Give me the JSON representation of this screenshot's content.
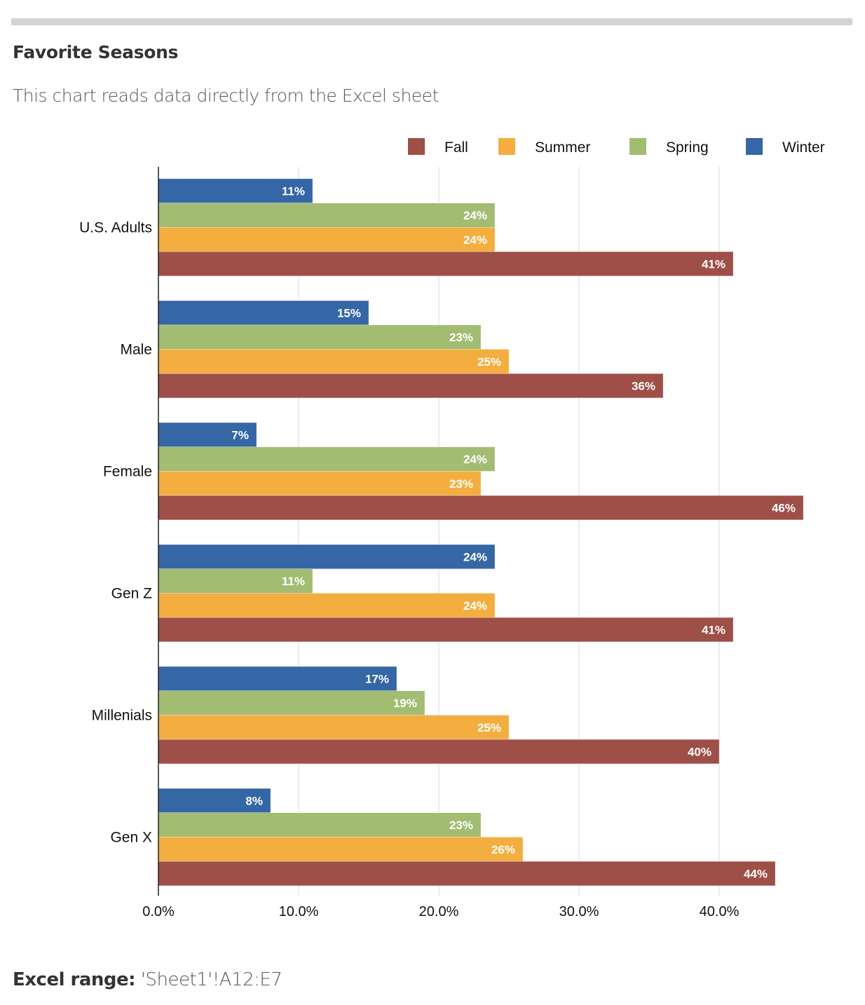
{
  "header": {
    "title": "Favorite Seasons",
    "subtitle": "This chart reads data directly from the Excel sheet"
  },
  "footer": {
    "label": "Excel range:",
    "value": "'Sheet1'!A12:E7"
  },
  "chart_data": {
    "type": "bar",
    "orientation": "horizontal",
    "title": "",
    "xlabel": "",
    "ylabel": "",
    "xlim": [
      0,
      46
    ],
    "x_ticks": [
      0,
      10,
      20,
      30,
      40
    ],
    "x_tick_labels": [
      "0.0%",
      "10.0%",
      "20.0%",
      "30.0%",
      "40.0%"
    ],
    "grid": true,
    "legend_position": "top-right",
    "categories": [
      "U.S. Adults",
      "Male",
      "Female",
      "Gen Z",
      "Millenials",
      "Gen X"
    ],
    "legend_order": [
      "Fall",
      "Summer",
      "Spring",
      "Winter"
    ],
    "series": [
      {
        "name": "Winter",
        "color": "#3566a6",
        "values": [
          11,
          15,
          7,
          24,
          17,
          8
        ],
        "labels": [
          "11%",
          "15%",
          "7%",
          "24%",
          "17%",
          "8%"
        ]
      },
      {
        "name": "Spring",
        "color": "#a2bc72",
        "values": [
          24,
          23,
          24,
          11,
          19,
          23
        ],
        "labels": [
          "24%",
          "23%",
          "24%",
          "11%",
          "19%",
          "23%"
        ]
      },
      {
        "name": "Summer",
        "color": "#f3ae3f",
        "values": [
          24,
          25,
          23,
          24,
          25,
          26
        ],
        "labels": [
          "24%",
          "25%",
          "23%",
          "24%",
          "25%",
          "26%"
        ]
      },
      {
        "name": "Fall",
        "color": "#9e4f48",
        "values": [
          41,
          36,
          46,
          41,
          40,
          44
        ],
        "labels": [
          "41%",
          "36%",
          "46%",
          "41%",
          "40%",
          "44%"
        ]
      }
    ]
  }
}
